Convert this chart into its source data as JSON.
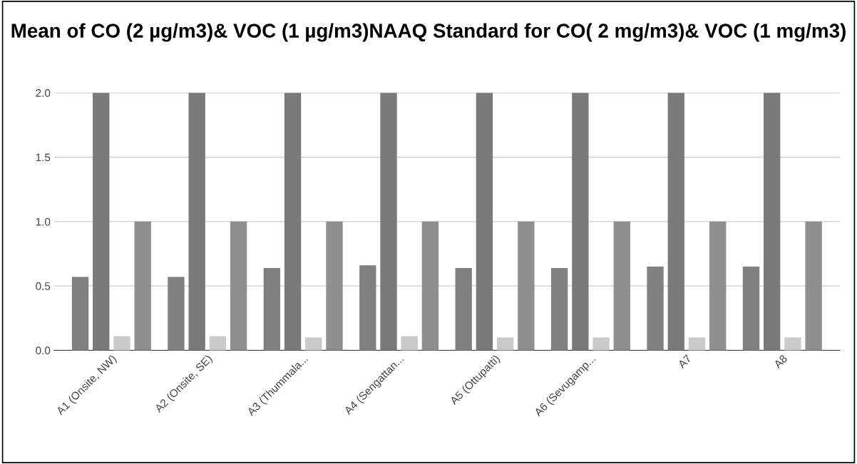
{
  "chart_data": {
    "type": "bar",
    "title": "Mean of CO (2 µg/m3)& VOC (1 µg/m3)NAAQ Standard for CO( 2 mg/m3)& VOC (1 mg/m3)",
    "categories": [
      "A1 (Onsite, NW)",
      "A2 (Onsite, SE)",
      "A3 (Thummala...",
      "A4 (Sengattan...",
      "A5 (Ottupatti)",
      "A6 (Sevugamp...",
      "A7",
      "A8"
    ],
    "series": [
      {
        "color": "#808080",
        "values": [
          0.57,
          0.57,
          0.64,
          0.66,
          0.64,
          0.64,
          0.65,
          0.65
        ]
      },
      {
        "color": "#7a7a7a",
        "values": [
          2,
          2,
          2,
          2,
          2,
          2,
          2,
          2
        ]
      },
      {
        "color": "#cacaca",
        "values": [
          0.11,
          0.11,
          0.1,
          0.11,
          0.1,
          0.1,
          0.1,
          0.1
        ]
      },
      {
        "color": "#8f8f8f",
        "values": [
          1,
          1,
          1,
          1,
          1,
          1,
          1,
          1
        ]
      }
    ],
    "ylim": [
      0,
      2
    ],
    "yticks": [
      {
        "value": 0,
        "label": "0.0"
      },
      {
        "value": 0.5,
        "label": "0.5"
      },
      {
        "value": 1,
        "label": "1.0"
      },
      {
        "value": 1.5,
        "label": "1.5"
      },
      {
        "value": 2,
        "label": "2.0"
      }
    ],
    "grid": "y"
  }
}
